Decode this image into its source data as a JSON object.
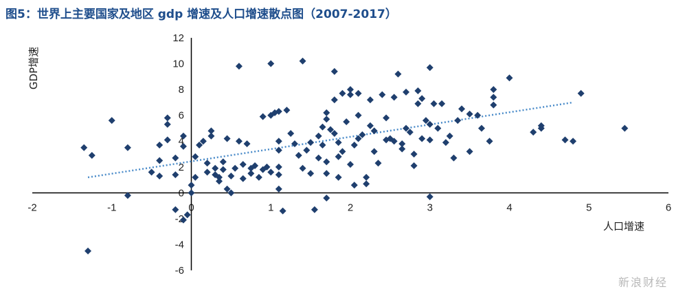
{
  "title": "图5：世界上主要国家及地区 gdp 增速及人口增速散点图（2007-2017）",
  "watermark": "新浪财经",
  "chart_data": {
    "type": "scatter",
    "xlabel": "人口增速",
    "ylabel": "GDP增速",
    "xlim": [
      -2,
      6
    ],
    "ylim": [
      -6,
      12
    ],
    "xticks": [
      -2,
      -1,
      0,
      1,
      2,
      3,
      4,
      5,
      6
    ],
    "yticks": [
      -6,
      -4,
      -2,
      0,
      2,
      4,
      6,
      8,
      10,
      12
    ],
    "xtick_labels": [
      "-2",
      "-1",
      "0",
      "1",
      "2",
      "3",
      "4",
      "5",
      "6"
    ],
    "ytick_labels": [
      "-6",
      "-4",
      "-2",
      "0",
      "2",
      "4",
      "6",
      "8",
      "10",
      "12"
    ],
    "grid": false,
    "marker_color": "#1f3f6e",
    "trendline": {
      "x": [
        -1.3,
        4.8
      ],
      "y": [
        1.2,
        7.0
      ],
      "color": "#4a8bc9",
      "style": "dotted"
    },
    "points": [
      [
        -1.3,
        -4.5
      ],
      [
        -1.35,
        3.5
      ],
      [
        -1.25,
        2.9
      ],
      [
        -1.0,
        5.6
      ],
      [
        -0.8,
        3.5
      ],
      [
        -0.8,
        -0.2
      ],
      [
        -0.5,
        1.6
      ],
      [
        -0.4,
        3.7
      ],
      [
        -0.4,
        2.5
      ],
      [
        -0.4,
        1.3
      ],
      [
        -0.3,
        5.8
      ],
      [
        -0.3,
        5.3
      ],
      [
        -0.3,
        4.1
      ],
      [
        -0.2,
        2.7
      ],
      [
        -0.2,
        1.4
      ],
      [
        -0.2,
        -1.3
      ],
      [
        -0.1,
        4.4
      ],
      [
        -0.1,
        3.6
      ],
      [
        -0.1,
        -2.1
      ],
      [
        -0.05,
        -1.7
      ],
      [
        0.0,
        0.6
      ],
      [
        0.0,
        0.0
      ],
      [
        0.05,
        1.2
      ],
      [
        0.05,
        2.8
      ],
      [
        0.1,
        3.7
      ],
      [
        0.15,
        4.0
      ],
      [
        0.2,
        1.6
      ],
      [
        0.2,
        2.3
      ],
      [
        0.25,
        4.4
      ],
      [
        0.25,
        4.8
      ],
      [
        0.3,
        1.4
      ],
      [
        0.3,
        1.9
      ],
      [
        0.35,
        1.2
      ],
      [
        0.35,
        0.9
      ],
      [
        0.4,
        1.8
      ],
      [
        0.4,
        2.4
      ],
      [
        0.45,
        0.3
      ],
      [
        0.45,
        4.2
      ],
      [
        0.5,
        1.3
      ],
      [
        0.5,
        0.0
      ],
      [
        0.55,
        1.9
      ],
      [
        0.6,
        9.8
      ],
      [
        0.6,
        4.0
      ],
      [
        0.65,
        2.2
      ],
      [
        0.65,
        1.1
      ],
      [
        0.7,
        3.8
      ],
      [
        0.75,
        1.9
      ],
      [
        0.75,
        1.5
      ],
      [
        0.8,
        2.1
      ],
      [
        0.85,
        1.2
      ],
      [
        0.9,
        1.8
      ],
      [
        0.9,
        5.9
      ],
      [
        0.95,
        2.0
      ],
      [
        1.0,
        10.0
      ],
      [
        1.0,
        6.0
      ],
      [
        1.0,
        1.6
      ],
      [
        1.05,
        6.2
      ],
      [
        1.1,
        6.3
      ],
      [
        1.1,
        4.0
      ],
      [
        1.1,
        3.3
      ],
      [
        1.1,
        2.0
      ],
      [
        1.1,
        1.4
      ],
      [
        1.1,
        0.3
      ],
      [
        1.15,
        -1.4
      ],
      [
        1.2,
        6.4
      ],
      [
        1.25,
        4.6
      ],
      [
        1.3,
        3.8
      ],
      [
        1.35,
        2.9
      ],
      [
        1.4,
        1.9
      ],
      [
        1.4,
        10.2
      ],
      [
        1.45,
        3.3
      ],
      [
        1.5,
        3.9
      ],
      [
        1.5,
        1.5
      ],
      [
        1.55,
        -1.3
      ],
      [
        1.6,
        2.7
      ],
      [
        1.6,
        4.4
      ],
      [
        1.65,
        5.1
      ],
      [
        1.65,
        3.7
      ],
      [
        1.7,
        2.4
      ],
      [
        1.7,
        5.7
      ],
      [
        1.7,
        6.2
      ],
      [
        1.7,
        1.5
      ],
      [
        1.7,
        -0.4
      ],
      [
        1.75,
        4.9
      ],
      [
        1.8,
        9.4
      ],
      [
        1.8,
        7.2
      ],
      [
        1.8,
        4.6
      ],
      [
        1.85,
        3.9
      ],
      [
        1.85,
        2.8
      ],
      [
        1.85,
        1.2
      ],
      [
        1.9,
        3.2
      ],
      [
        1.9,
        7.7
      ],
      [
        1.95,
        5.5
      ],
      [
        2.0,
        8.0
      ],
      [
        2.0,
        7.6
      ],
      [
        2.0,
        2.2
      ],
      [
        2.05,
        0.6
      ],
      [
        2.05,
        3.7
      ],
      [
        2.1,
        6.0
      ],
      [
        2.1,
        4.2
      ],
      [
        2.1,
        7.7
      ],
      [
        2.15,
        4.5
      ],
      [
        2.2,
        1.2
      ],
      [
        2.2,
        0.7
      ],
      [
        2.25,
        7.2
      ],
      [
        2.25,
        5.2
      ],
      [
        2.3,
        4.8
      ],
      [
        2.3,
        3.2
      ],
      [
        2.35,
        2.3
      ],
      [
        2.4,
        7.6
      ],
      [
        2.45,
        4.1
      ],
      [
        2.45,
        5.8
      ],
      [
        2.5,
        4.2
      ],
      [
        2.55,
        7.4
      ],
      [
        2.55,
        4.0
      ],
      [
        2.6,
        9.2
      ],
      [
        2.65,
        3.8
      ],
      [
        2.65,
        3.4
      ],
      [
        2.7,
        7.8
      ],
      [
        2.7,
        5.0
      ],
      [
        2.75,
        4.7
      ],
      [
        2.8,
        3.0
      ],
      [
        2.8,
        2.1
      ],
      [
        2.85,
        7.9
      ],
      [
        2.85,
        6.9
      ],
      [
        2.9,
        7.3
      ],
      [
        2.9,
        4.2
      ],
      [
        2.95,
        5.6
      ],
      [
        3.0,
        9.7
      ],
      [
        3.0,
        4.1
      ],
      [
        3.0,
        -0.3
      ],
      [
        3.0,
        5.3
      ],
      [
        3.05,
        6.9
      ],
      [
        3.1,
        5.0
      ],
      [
        3.15,
        6.9
      ],
      [
        3.2,
        3.9
      ],
      [
        3.25,
        4.4
      ],
      [
        3.3,
        2.7
      ],
      [
        3.35,
        5.6
      ],
      [
        3.4,
        6.5
      ],
      [
        3.5,
        6.1
      ],
      [
        3.5,
        3.2
      ],
      [
        3.6,
        6.0
      ],
      [
        3.65,
        5.0
      ],
      [
        3.75,
        4.0
      ],
      [
        3.8,
        8.0
      ],
      [
        3.8,
        7.4
      ],
      [
        3.8,
        6.8
      ],
      [
        4.0,
        8.9
      ],
      [
        4.3,
        4.7
      ],
      [
        4.4,
        5.2
      ],
      [
        4.4,
        5.0
      ],
      [
        4.7,
        4.1
      ],
      [
        4.8,
        4.0
      ],
      [
        4.9,
        7.7
      ],
      [
        5.45,
        5.0
      ]
    ]
  }
}
